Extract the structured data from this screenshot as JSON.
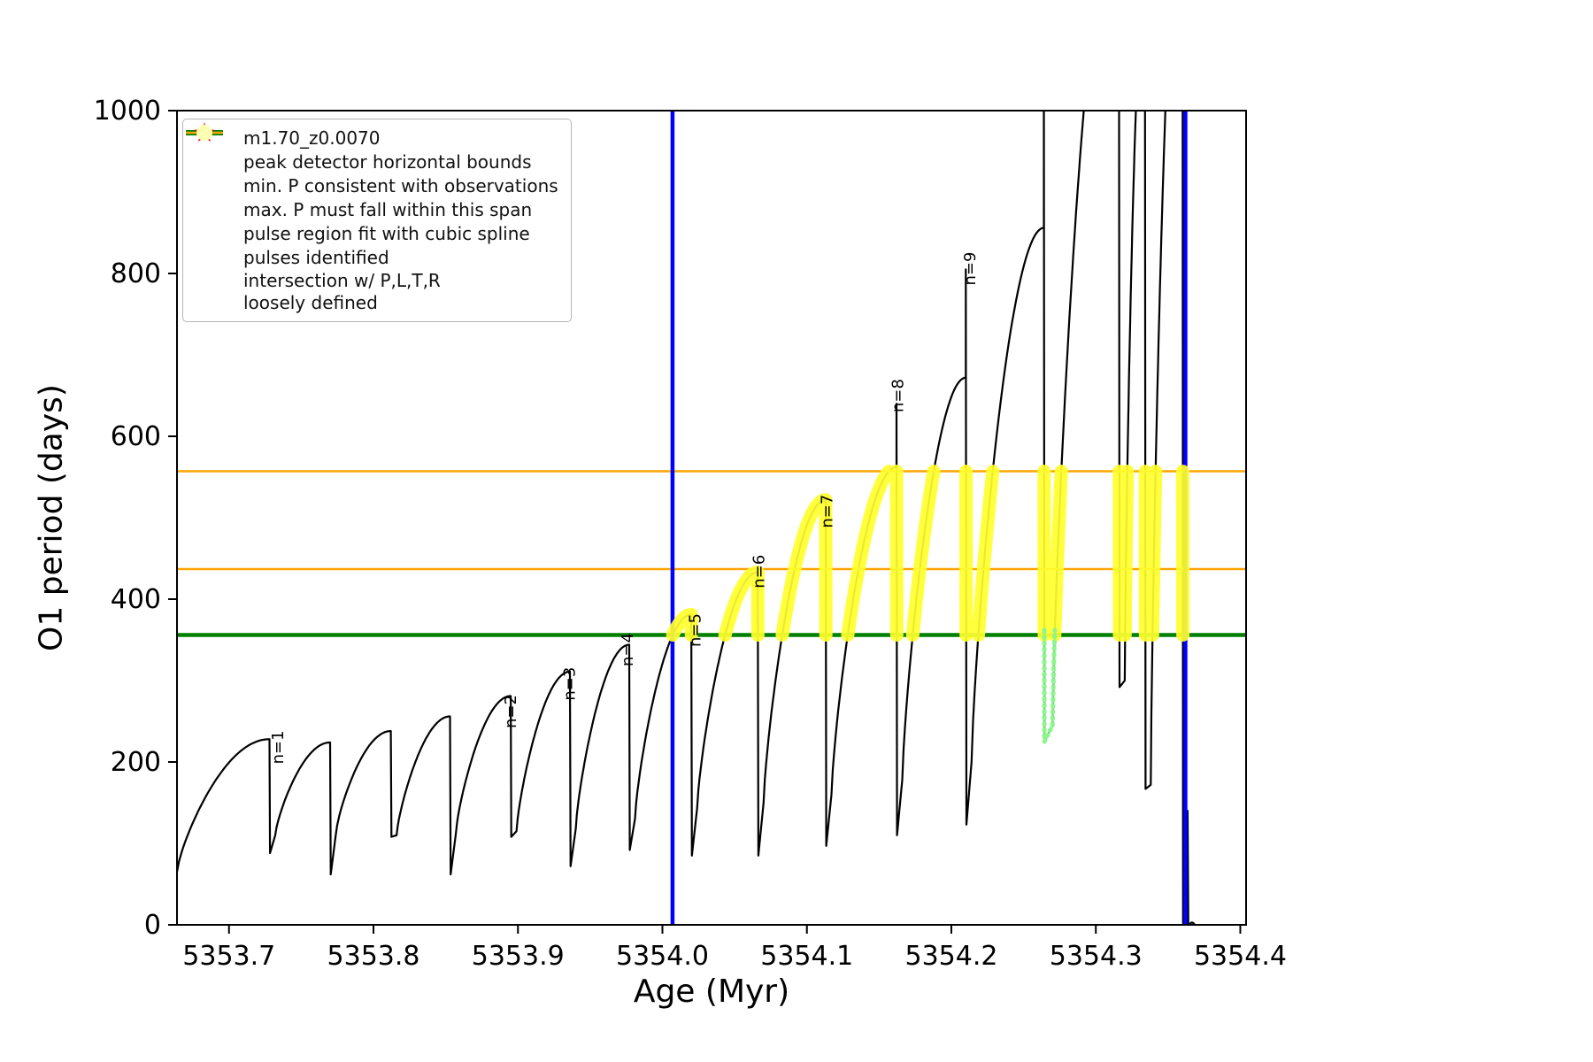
{
  "axes": {
    "xlabel": "Age (Myr)",
    "ylabel": "O1 period (days)"
  },
  "legend": {
    "items": [
      {
        "label": "m1.70_z0.0070",
        "marker": "line-dot",
        "color": "#000000"
      },
      {
        "label": "peak detector horizontal bounds",
        "marker": "thick-line",
        "color": "#0000ff"
      },
      {
        "label": "min. P consistent with observations",
        "marker": "thick-line",
        "color": "#008000"
      },
      {
        "label": "max. P must fall within this span",
        "marker": "line",
        "color": "#ffa500"
      },
      {
        "label": "pulse region fit with cubic spline",
        "marker": "dot-small",
        "color": "#90ee90"
      },
      {
        "label": "pulses identified",
        "marker": "star",
        "color": "#ff0000"
      },
      {
        "label": "intersection w/ P,L,T,R\nloosely defined",
        "marker": "dot-large",
        "color": "#ffffb3"
      }
    ]
  },
  "chart_data": {
    "type": "line",
    "title": "",
    "xlabel": "Age (Myr)",
    "ylabel": "O1 period (days)",
    "xlim": [
      5353.664,
      5354.404
    ],
    "ylim": [
      0,
      1000
    ],
    "xticks": {
      "values": [
        5353.7,
        5353.8,
        5353.9,
        5354.0,
        5354.1,
        5354.2,
        5354.3,
        5354.4
      ],
      "labels": [
        "5353.7",
        "5353.8",
        "5353.9",
        "5354.0",
        "5354.1",
        "5354.2",
        "5354.3",
        "5354.4"
      ]
    },
    "yticks": {
      "values": [
        0,
        200,
        400,
        600,
        800,
        1000
      ],
      "labels": [
        "0",
        "200",
        "400",
        "600",
        "800",
        "1000"
      ]
    },
    "series_name": "m1.70_z0.0070",
    "series_color": "#000000",
    "lead_points": [
      [
        5353.663,
        160
      ],
      [
        5353.6635,
        65
      ]
    ],
    "pulses": [
      {
        "x_start": 5353.664,
        "x_peak": 5353.728,
        "y_start": 65,
        "y_peak": 228,
        "y_dip": 88
      },
      {
        "x_start": 5353.732,
        "x_peak": 5353.77,
        "y_start": 110,
        "y_peak": 224,
        "y_dip": 62
      },
      {
        "x_start": 5353.774,
        "x_peak": 5353.812,
        "y_start": 112,
        "y_peak": 238,
        "y_dip": 108
      },
      {
        "x_start": 5353.816,
        "x_peak": 5353.853,
        "y_start": 110,
        "y_peak": 256,
        "y_dip": 62
      },
      {
        "x_start": 5353.857,
        "x_peak": 5353.895,
        "y_start": 112,
        "y_peak": 281,
        "y_dip": 108
      },
      {
        "x_start": 5353.899,
        "x_peak": 5353.936,
        "y_start": 115,
        "y_peak": 311,
        "y_dip": 72
      },
      {
        "x_start": 5353.94,
        "x_peak": 5353.977,
        "y_start": 118,
        "y_peak": 344,
        "y_dip": 92
      },
      {
        "x_start": 5353.981,
        "x_peak": 5354.02,
        "y_start": 130,
        "y_peak": 381,
        "y_dip": 85
      },
      {
        "x_start": 5354.024,
        "x_peak": 5354.066,
        "y_start": 143,
        "y_peak": 433,
        "y_dip": 85
      },
      {
        "x_start": 5354.07,
        "x_peak": 5354.113,
        "y_start": 150,
        "y_peak": 522,
        "y_dip": 97
      },
      {
        "x_start": 5354.117,
        "x_peak": 5354.162,
        "y_start": 160,
        "y_peak": 562,
        "y_spike": 640,
        "y_dip": 110
      },
      {
        "x_start": 5354.166,
        "x_peak": 5354.21,
        "y_start": 178,
        "y_peak": 672,
        "y_spike": 805,
        "y_dip": 123
      },
      {
        "x_start": 5354.214,
        "x_peak": 5354.264,
        "y_start": 200,
        "y_peak": 856,
        "y_spike": 1060,
        "y_dip": 225
      },
      {
        "x_start": 5354.27,
        "x_peak": 5354.316,
        "y_start": 245,
        "y_peak": 1260,
        "y_dip": 292
      },
      {
        "x_start": 5354.32,
        "x_peak": 5354.334,
        "y_start": 300,
        "y_peak": 1160,
        "y_dip": 167
      },
      {
        "x_start": 5354.338,
        "x_peak": 5354.36,
        "y_start": 172,
        "y_peak": 1300,
        "y_dip": 2
      }
    ],
    "tail_points": [
      [
        5354.3625,
        2
      ],
      [
        5354.363,
        0
      ],
      [
        5354.3635,
        140
      ],
      [
        5354.364,
        0
      ],
      [
        5354.3665,
        3
      ],
      [
        5354.3685,
        1
      ]
    ],
    "vlines": [
      {
        "x": 5354.007,
        "color": "#0000ff",
        "lw": 4.5
      },
      {
        "x": 5354.362,
        "color": "#0000ff",
        "lw": 4.5
      }
    ],
    "hlines": [
      {
        "y": 356,
        "color": "#008000",
        "lw": 4.5
      },
      {
        "y": 437,
        "color": "#ffa500",
        "lw": 2.5
      },
      {
        "y": 557,
        "color": "#ffa500",
        "lw": 2.5
      }
    ],
    "intersection_band": {
      "x_min": 5354.007,
      "x_max": 5354.366,
      "y_min": 356,
      "y_max": 557,
      "color": "#ffff2e"
    },
    "spline_region": {
      "x_min": 5354.252,
      "x_max": 5354.276,
      "y_min": 205,
      "y_max": 362,
      "color": "#8ef58e"
    },
    "pulse_labels": [
      {
        "text": "n=1",
        "x": 5353.7375,
        "y": 218
      },
      {
        "text": "n=2",
        "x": 5353.8985,
        "y": 262
      },
      {
        "text": "n=3",
        "x": 5353.9395,
        "y": 296
      },
      {
        "text": "n=4",
        "x": 5353.9795,
        "y": 338
      },
      {
        "text": "n=5",
        "x": 5354.0265,
        "y": 362
      },
      {
        "text": "n=6",
        "x": 5354.0705,
        "y": 434
      },
      {
        "text": "n=7",
        "x": 5354.1175,
        "y": 508
      },
      {
        "text": "n=8",
        "x": 5354.1665,
        "y": 650
      },
      {
        "text": "n=9",
        "x": 5354.2165,
        "y": 806
      }
    ]
  }
}
